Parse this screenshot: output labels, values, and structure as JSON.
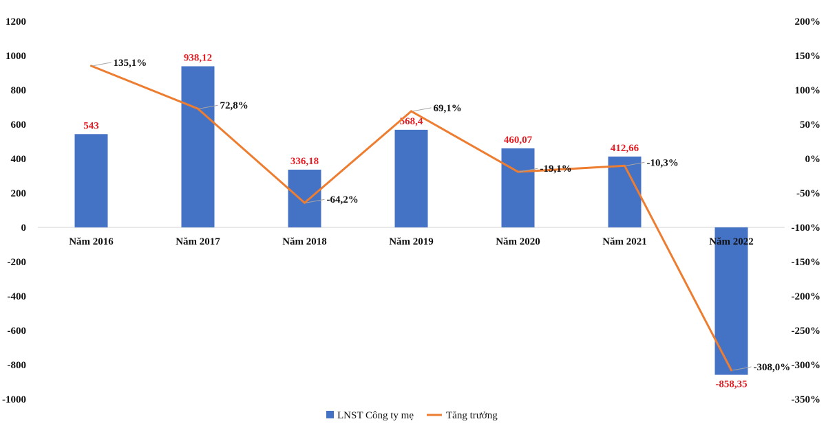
{
  "chart_data": {
    "type": "bar",
    "categories": [
      "Năm 2016",
      "Năm 2017",
      "Năm 2018",
      "Năm 2019",
      "Năm 2020",
      "Năm 2021",
      "Năm 2022"
    ],
    "series": [
      {
        "name": "LNST Công ty mẹ",
        "kind": "bar",
        "axis": "left",
        "values": [
          543,
          938.12,
          336.18,
          568.4,
          460.07,
          412.66,
          -858.35
        ],
        "labels": [
          "543",
          "938,12",
          "336,18",
          "568,4",
          "460,07",
          "412,66",
          "-858,35"
        ],
        "color": "#4472c4",
        "label_color": "#e31e24"
      },
      {
        "name": "Tăng trưởng",
        "kind": "line",
        "axis": "right",
        "values": [
          135.1,
          72.8,
          -64.2,
          69.1,
          -19.1,
          -10.3,
          -308.0
        ],
        "labels": [
          "135,1%",
          "72,8%",
          "-64,2%",
          "69,1%",
          "-19,1%",
          "-10,3%",
          "-308,0%"
        ],
        "color": "#ed7d31"
      }
    ],
    "y_left": {
      "ylim": [
        -1000,
        1200
      ],
      "ticks": [
        1200,
        1000,
        800,
        600,
        400,
        200,
        0,
        -200,
        -400,
        -600,
        -800,
        -1000
      ],
      "tick_labels": [
        "1200",
        "1000",
        "800",
        "600",
        "400",
        "200",
        "0",
        "-200",
        "-400",
        "-600",
        "-800",
        "-1000"
      ]
    },
    "y_right": {
      "ylim": [
        -350,
        200
      ],
      "ticks": [
        200,
        150,
        100,
        50,
        0,
        -50,
        -100,
        -150,
        -200,
        -250,
        -300,
        -350
      ],
      "tick_labels": [
        "200%",
        "150%",
        "100%",
        "50%",
        "0%",
        "-50%",
        "-100%",
        "-150%",
        "-200%",
        "-250%",
        "-300%",
        "-350%"
      ]
    },
    "legend": {
      "position": "bottom",
      "entries": [
        {
          "label": "LNST Công ty mẹ",
          "color": "#4472c4",
          "marker": "square"
        },
        {
          "label": "Tăng trưởng",
          "color": "#ed7d31",
          "marker": "line"
        }
      ]
    },
    "title": "",
    "grid": false
  }
}
